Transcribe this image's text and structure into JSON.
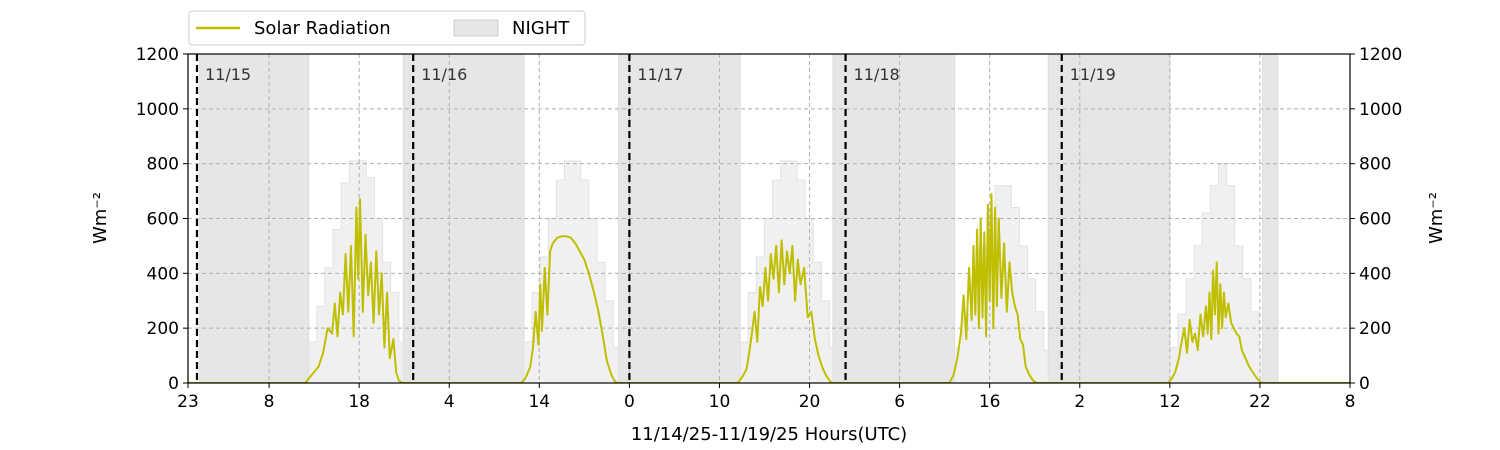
{
  "chart_data": {
    "type": "line",
    "xlabel": "11/14/25-11/19/25  Hours(UTC)",
    "ylabel_left": "Wm⁻²",
    "ylabel_right": "Wm⁻²",
    "ylim": [
      0,
      1200
    ],
    "yticks": [
      0,
      200,
      400,
      600,
      800,
      1000,
      1200
    ],
    "x_hours_range": [
      0,
      129
    ],
    "xticks": [
      {
        "h": 0,
        "label": "23"
      },
      {
        "h": 9,
        "label": "8"
      },
      {
        "h": 19,
        "label": "18"
      },
      {
        "h": 29,
        "label": "4"
      },
      {
        "h": 39,
        "label": "14"
      },
      {
        "h": 49,
        "label": "0"
      },
      {
        "h": 59,
        "label": "10"
      },
      {
        "h": 69,
        "label": "20"
      },
      {
        "h": 79,
        "label": "6"
      },
      {
        "h": 89,
        "label": "16"
      },
      {
        "h": 99,
        "label": "2"
      },
      {
        "h": 109,
        "label": "12"
      },
      {
        "h": 119,
        "label": "22"
      },
      {
        "h": 129,
        "label": "8"
      }
    ],
    "grid": true,
    "legend": {
      "placement": "top-left, above plot",
      "entries": [
        {
          "name": "Solar Radiation",
          "kind": "line",
          "color": "#bfbf00"
        },
        {
          "name": "NIGHT",
          "kind": "patch",
          "color": "#e6e6e6"
        }
      ]
    },
    "day_markers": [
      {
        "h": 1,
        "label": "11/15"
      },
      {
        "h": 25,
        "label": "11/16"
      },
      {
        "h": 49,
        "label": "11/17"
      },
      {
        "h": 73,
        "label": "11/18"
      },
      {
        "h": 97,
        "label": "11/19"
      }
    ],
    "night_intervals": [
      [
        1.3,
        13.4
      ],
      [
        23.9,
        37.3
      ],
      [
        47.8,
        61.3
      ],
      [
        71.6,
        85.1
      ],
      [
        95.5,
        109
      ],
      [
        119.3,
        121
      ]
    ],
    "clear_sky_profile": {
      "color": "#f0f0f0",
      "days": [
        {
          "x": [
            13.4,
            14.3,
            15.2,
            16.1,
            17.0,
            17.9,
            18.9,
            19.8,
            20.7,
            21.6,
            22.5,
            23.4,
            23.9
          ],
          "y": [
            150,
            280,
            420,
            560,
            730,
            810,
            810,
            750,
            600,
            440,
            330,
            150,
            0
          ]
        },
        {
          "x": [
            37.3,
            38.2,
            39.1,
            40.0,
            40.9,
            41.8,
            42.7,
            43.6,
            44.5,
            45.4,
            46.3,
            47.2,
            47.8
          ],
          "y": [
            150,
            330,
            460,
            600,
            740,
            810,
            810,
            740,
            600,
            440,
            300,
            130,
            0
          ]
        },
        {
          "x": [
            61.3,
            62.2,
            63.1,
            64.0,
            64.9,
            65.8,
            66.7,
            67.6,
            68.5,
            69.4,
            70.3,
            71.2,
            71.6
          ],
          "y": [
            150,
            330,
            460,
            600,
            740,
            810,
            810,
            740,
            600,
            440,
            300,
            130,
            0
          ]
        },
        {
          "x": [
            85.1,
            86.0,
            86.9,
            87.8,
            88.7,
            89.6,
            90.5,
            91.4,
            92.3,
            93.2,
            94.1,
            95.0,
            95.5
          ],
          "y": [
            130,
            250,
            380,
            500,
            620,
            720,
            720,
            640,
            500,
            380,
            260,
            120,
            0
          ]
        },
        {
          "x": [
            109.0,
            109.9,
            110.8,
            111.7,
            112.6,
            113.5,
            114.4,
            115.3,
            116.2,
            117.1,
            118.0,
            118.9,
            119.3
          ],
          "y": [
            130,
            250,
            380,
            500,
            620,
            720,
            800,
            720,
            500,
            380,
            260,
            120,
            0
          ]
        }
      ]
    },
    "series": [
      {
        "name": "Solar Radiation",
        "color": "#bfbf00",
        "x": [
          0,
          13,
          13.5,
          14.5,
          15,
          15.5,
          16,
          16.3,
          16.6,
          16.9,
          17.2,
          17.5,
          17.8,
          18.1,
          18.4,
          18.7,
          18.9,
          19.1,
          19.4,
          19.7,
          20,
          20.3,
          20.6,
          20.9,
          21.2,
          21.5,
          21.8,
          22.1,
          22.4,
          22.8,
          23.1,
          23.4,
          23.8,
          37,
          37.5,
          38,
          38.3,
          38.6,
          38.9,
          39.1,
          39.3,
          39.6,
          39.9,
          40.2,
          40.5,
          41,
          41.5,
          42,
          42.5,
          43,
          43.5,
          44,
          44.5,
          45,
          45.5,
          46,
          46.5,
          47,
          47.3,
          47.6,
          61,
          61.5,
          62,
          62.3,
          62.6,
          62.9,
          63.2,
          63.5,
          63.8,
          64.1,
          64.4,
          64.7,
          65,
          65.3,
          65.6,
          65.9,
          66.2,
          66.5,
          66.8,
          67.1,
          67.4,
          67.7,
          68,
          68.4,
          68.8,
          69.2,
          69.6,
          70,
          70.4,
          70.8,
          71.2,
          71.5,
          84.5,
          85,
          85.4,
          85.8,
          86.1,
          86.4,
          86.7,
          87,
          87.2,
          87.4,
          87.6,
          87.8,
          88,
          88.2,
          88.4,
          88.6,
          88.8,
          89,
          89.2,
          89.4,
          89.6,
          89.8,
          90,
          90.3,
          90.6,
          90.9,
          91.2,
          91.5,
          91.8,
          92.1,
          92.4,
          92.7,
          93,
          93.4,
          93.8,
          94.2,
          94.6,
          95,
          95.3,
          108.8,
          109.2,
          109.6,
          110,
          110.3,
          110.6,
          110.9,
          111.2,
          111.5,
          111.8,
          112.1,
          112.4,
          112.7,
          113,
          113.2,
          113.4,
          113.6,
          113.8,
          114,
          114.2,
          114.4,
          114.6,
          114.8,
          115,
          115.2,
          115.5,
          115.8,
          116.1,
          116.4,
          116.7,
          117,
          117.4,
          117.8,
          118.2,
          118.6,
          119,
          119.3,
          129
        ],
        "y": [
          0,
          0,
          20,
          60,
          110,
          200,
          180,
          290,
          170,
          330,
          250,
          470,
          260,
          500,
          170,
          640,
          380,
          670,
          260,
          540,
          320,
          440,
          220,
          480,
          250,
          400,
          130,
          330,
          90,
          160,
          40,
          10,
          0,
          0,
          20,
          60,
          130,
          260,
          140,
          360,
          190,
          420,
          250,
          480,
          510,
          530,
          535,
          535,
          530,
          510,
          480,
          450,
          400,
          340,
          270,
          180,
          80,
          30,
          10,
          0,
          0,
          20,
          50,
          110,
          180,
          260,
          150,
          350,
          280,
          420,
          300,
          470,
          380,
          500,
          330,
          520,
          360,
          480,
          400,
          500,
          300,
          450,
          360,
          420,
          240,
          260,
          160,
          100,
          60,
          30,
          10,
          0,
          0,
          30,
          90,
          180,
          320,
          160,
          420,
          230,
          500,
          250,
          560,
          200,
          600,
          240,
          550,
          170,
          650,
          300,
          690,
          200,
          640,
          280,
          600,
          310,
          510,
          260,
          440,
          330,
          280,
          250,
          160,
          140,
          60,
          30,
          10,
          0,
          0,
          0,
          0,
          0,
          15,
          40,
          90,
          150,
          200,
          110,
          230,
          150,
          180,
          120,
          250,
          170,
          280,
          180,
          330,
          160,
          410,
          250,
          440,
          180,
          360,
          200,
          330,
          240,
          290,
          220,
          200,
          180,
          170,
          120,
          90,
          60,
          40,
          20,
          5,
          0,
          0
        ]
      }
    ]
  }
}
